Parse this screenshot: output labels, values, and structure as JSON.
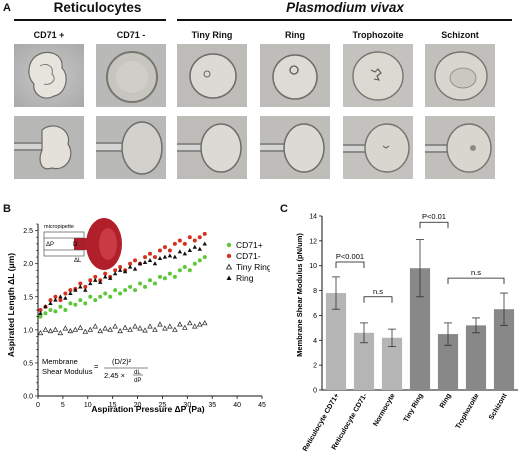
{
  "panelA": {
    "letter": "A",
    "groups": [
      {
        "title": "Reticulocytes",
        "italic": false
      },
      {
        "title": "Plasmodium vivax",
        "italic": true
      }
    ],
    "columns": [
      "CD71 +",
      "CD71 -",
      "Tiny Ring",
      "Ring",
      "Trophozoite",
      "Schizont"
    ]
  },
  "panelB": {
    "letter": "B",
    "inset": {
      "label_micropipette": "micropipette",
      "label_dp": "ΔP",
      "label_d": "D",
      "label_dl": "ΔL"
    },
    "formula": {
      "lhs_line1": "Membrane",
      "lhs_line2": "Shear Modulus",
      "num": "(D/2)²",
      "den_factor": "2.45 ×",
      "frac_top": "dL",
      "frac_bot": "dP"
    }
  },
  "panelC": {
    "letter": "C"
  },
  "chart_data": [
    {
      "type": "scatter",
      "xlabel": "Aspiration  Pressure ΔP (Pa)",
      "ylabel": "Aspirated Length ΔL (μm)",
      "xlim": [
        0,
        45
      ],
      "ylim": [
        0.0,
        2.6
      ],
      "xticks": [
        0,
        5,
        10,
        15,
        20,
        25,
        30,
        35,
        40,
        45
      ],
      "yticks": [
        0.0,
        0.1,
        0.2,
        0.3,
        0.4,
        0.5,
        0.6,
        0.7,
        0.8,
        0.9,
        1.0,
        1.1,
        1.2,
        1.3,
        1.4,
        1.5,
        1.6,
        1.7,
        1.8,
        1.9,
        2.0,
        2.1,
        2.2,
        2.3,
        2.4,
        2.5,
        2.6
      ],
      "yticklabels_shown": [
        0.0,
        0.5,
        1.0,
        1.5,
        2.0,
        2.5
      ],
      "legend_position": "top-right",
      "series": [
        {
          "name": "CD71+",
          "color": "#5cc839",
          "marker": "circle",
          "x": [
            0.5,
            1.5,
            2.5,
            3.5,
            4.5,
            5.5,
            6.5,
            7.5,
            8.5,
            9.5,
            10.5,
            11.5,
            12.5,
            13.5,
            14.5,
            15.5,
            16.5,
            17.5,
            18.5,
            19.5,
            20.5,
            21.5,
            22.5,
            23.5,
            24.5,
            25.5,
            26.5,
            27.5,
            28.5,
            29.5,
            30.5,
            31.5,
            32.5,
            33.5
          ],
          "y": [
            1.2,
            1.25,
            1.3,
            1.28,
            1.35,
            1.3,
            1.4,
            1.38,
            1.45,
            1.4,
            1.5,
            1.45,
            1.5,
            1.55,
            1.5,
            1.6,
            1.55,
            1.6,
            1.65,
            1.6,
            1.7,
            1.65,
            1.75,
            1.7,
            1.8,
            1.78,
            1.85,
            1.8,
            1.9,
            1.95,
            1.9,
            2.0,
            2.05,
            2.1
          ]
        },
        {
          "name": "CD71-",
          "color": "#d6301f",
          "marker": "circle",
          "x": [
            0.5,
            1.5,
            2.5,
            3.5,
            4.5,
            5.5,
            6.5,
            7.5,
            8.5,
            9.5,
            10.5,
            11.5,
            12.5,
            13.5,
            14.5,
            15.5,
            16.5,
            17.5,
            18.5,
            19.5,
            20.5,
            21.5,
            22.5,
            23.5,
            24.5,
            25.5,
            26.5,
            27.5,
            28.5,
            29.5,
            30.5,
            31.5,
            32.5,
            33.5
          ],
          "y": [
            1.3,
            1.35,
            1.45,
            1.5,
            1.45,
            1.55,
            1.6,
            1.62,
            1.7,
            1.65,
            1.75,
            1.8,
            1.75,
            1.85,
            1.8,
            1.9,
            1.95,
            1.9,
            2.0,
            2.05,
            2.0,
            2.1,
            2.15,
            2.1,
            2.2,
            2.25,
            2.2,
            2.3,
            2.35,
            2.3,
            2.4,
            2.35,
            2.4,
            2.45
          ]
        },
        {
          "name": "Tiny Ring",
          "color": "#222222",
          "marker": "triangle-open",
          "x": [
            0.5,
            1.5,
            2.5,
            3.5,
            4.5,
            5.5,
            6.5,
            7.5,
            8.5,
            9.5,
            10.5,
            11.5,
            12.5,
            13.5,
            14.5,
            15.5,
            16.5,
            17.5,
            18.5,
            19.5,
            20.5,
            21.5,
            22.5,
            23.5,
            24.5,
            25.5,
            26.5,
            27.5,
            28.5,
            29.5,
            30.5,
            31.5,
            32.5,
            33.5
          ],
          "y": [
            0.95,
            1.0,
            0.98,
            1.0,
            0.95,
            1.02,
            0.98,
            1.0,
            1.03,
            0.97,
            1.0,
            1.05,
            0.98,
            1.02,
            1.0,
            1.05,
            0.98,
            1.03,
            1.0,
            1.05,
            1.02,
            0.99,
            1.05,
            1.0,
            1.08,
            1.02,
            1.05,
            1.0,
            1.08,
            1.03,
            1.1,
            1.05,
            1.08,
            1.1
          ]
        },
        {
          "name": "Ring",
          "color": "#111111",
          "marker": "triangle",
          "x": [
            0.5,
            1.5,
            2.5,
            3.5,
            4.5,
            5.5,
            6.5,
            7.5,
            8.5,
            9.5,
            10.5,
            11.5,
            12.5,
            13.5,
            14.5,
            15.5,
            16.5,
            17.5,
            18.5,
            19.5,
            20.5,
            21.5,
            22.5,
            23.5,
            24.5,
            25.5,
            26.5,
            27.5,
            28.5,
            29.5,
            30.5,
            31.5,
            32.5,
            33.5
          ],
          "y": [
            1.25,
            1.35,
            1.4,
            1.45,
            1.5,
            1.48,
            1.55,
            1.6,
            1.65,
            1.6,
            1.7,
            1.75,
            1.72,
            1.8,
            1.78,
            1.85,
            1.9,
            1.88,
            1.95,
            1.92,
            2.0,
            2.02,
            2.05,
            2.0,
            2.08,
            2.1,
            2.12,
            2.1,
            2.18,
            2.15,
            2.2,
            2.25,
            2.22,
            2.3
          ]
        }
      ]
    },
    {
      "type": "bar",
      "ylabel": "Membrane Shear Modulus (pN/um)",
      "ylim": [
        0,
        14
      ],
      "yticks": [
        0,
        2,
        4,
        6,
        8,
        10,
        12,
        14
      ],
      "categories": [
        "Reticulocyte CD71+",
        "Reticulocyte CD71-",
        "Normocyte",
        "Tiny Ring",
        "Ring",
        "Trophozoite",
        "Schizont"
      ],
      "values": [
        7.8,
        4.6,
        4.2,
        9.8,
        4.5,
        5.2,
        6.5
      ],
      "errors": [
        1.3,
        0.8,
        0.7,
        2.3,
        0.9,
        0.6,
        1.3
      ],
      "colors": [
        "#b5b5b5",
        "#b5b5b5",
        "#b5b5b5",
        "#888888",
        "#888888",
        "#888888",
        "#888888"
      ],
      "annotations": [
        {
          "text": "P<0.001",
          "from": 0,
          "to": 1,
          "y": 10.3
        },
        {
          "text": "n.s",
          "from": 1,
          "to": 2,
          "y": 7.5
        },
        {
          "text": "P<0.01",
          "from": 3,
          "to": 4,
          "y": 13.5
        },
        {
          "text": "n.s",
          "from": 4,
          "to": 6,
          "y": 9.0
        }
      ]
    }
  ]
}
